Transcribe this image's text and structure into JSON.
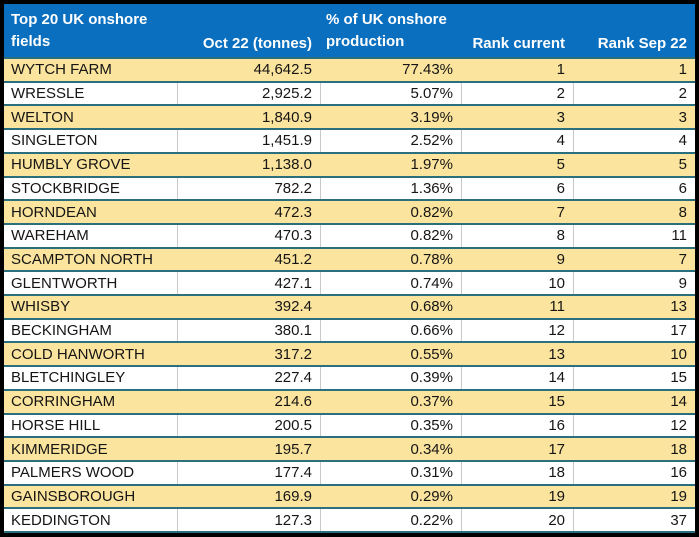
{
  "table": {
    "header": {
      "col_field": "Top 20 UK onshore fields",
      "col_tonnes": "Oct 22 (tonnes)",
      "col_pct": "% of UK onshore production",
      "col_rank_current": "Rank current",
      "col_rank_sep22": "Rank Sep 22"
    },
    "rows": [
      {
        "field": "WYTCH FARM",
        "tonnes": "44,642.5",
        "pct": "77.43%",
        "rank_current": "1",
        "rank_sep22": "1"
      },
      {
        "field": "WRESSLE",
        "tonnes": "2,925.2",
        "pct": "5.07%",
        "rank_current": "2",
        "rank_sep22": "2"
      },
      {
        "field": "WELTON",
        "tonnes": "1,840.9",
        "pct": "3.19%",
        "rank_current": "3",
        "rank_sep22": "3"
      },
      {
        "field": "SINGLETON",
        "tonnes": "1,451.9",
        "pct": "2.52%",
        "rank_current": "4",
        "rank_sep22": "4"
      },
      {
        "field": "HUMBLY GROVE",
        "tonnes": "1,138.0",
        "pct": "1.97%",
        "rank_current": "5",
        "rank_sep22": "5"
      },
      {
        "field": "STOCKBRIDGE",
        "tonnes": "782.2",
        "pct": "1.36%",
        "rank_current": "6",
        "rank_sep22": "6"
      },
      {
        "field": "HORNDEAN",
        "tonnes": "472.3",
        "pct": "0.82%",
        "rank_current": "7",
        "rank_sep22": "8"
      },
      {
        "field": "WAREHAM",
        "tonnes": "470.3",
        "pct": "0.82%",
        "rank_current": "8",
        "rank_sep22": "11"
      },
      {
        "field": "SCAMPTON NORTH",
        "tonnes": "451.2",
        "pct": "0.78%",
        "rank_current": "9",
        "rank_sep22": "7"
      },
      {
        "field": "GLENTWORTH",
        "tonnes": "427.1",
        "pct": "0.74%",
        "rank_current": "10",
        "rank_sep22": "9"
      },
      {
        "field": "WHISBY",
        "tonnes": "392.4",
        "pct": "0.68%",
        "rank_current": "11",
        "rank_sep22": "13"
      },
      {
        "field": "BECKINGHAM",
        "tonnes": "380.1",
        "pct": "0.66%",
        "rank_current": "12",
        "rank_sep22": "17"
      },
      {
        "field": "COLD HANWORTH",
        "tonnes": "317.2",
        "pct": "0.55%",
        "rank_current": "13",
        "rank_sep22": "10"
      },
      {
        "field": "BLETCHINGLEY",
        "tonnes": "227.4",
        "pct": "0.39%",
        "rank_current": "14",
        "rank_sep22": "15"
      },
      {
        "field": "CORRINGHAM",
        "tonnes": "214.6",
        "pct": "0.37%",
        "rank_current": "15",
        "rank_sep22": "14"
      },
      {
        "field": "HORSE HILL",
        "tonnes": "200.5",
        "pct": "0.35%",
        "rank_current": "16",
        "rank_sep22": "12"
      },
      {
        "field": "KIMMERIDGE",
        "tonnes": "195.7",
        "pct": "0.34%",
        "rank_current": "17",
        "rank_sep22": "18"
      },
      {
        "field": "PALMERS WOOD",
        "tonnes": "177.4",
        "pct": "0.31%",
        "rank_current": "18",
        "rank_sep22": "16"
      },
      {
        "field": "GAINSBOROUGH",
        "tonnes": "169.9",
        "pct": "0.29%",
        "rank_current": "19",
        "rank_sep22": "19"
      },
      {
        "field": "KEDDINGTON",
        "tonnes": "127.3",
        "pct": "0.22%",
        "rank_current": "20",
        "rank_sep22": "37"
      }
    ]
  },
  "colors": {
    "header_bg": "#0B6FBF",
    "header_text": "#FFFFFF",
    "row_highlight": "#FBE49D",
    "row_base": "#FFFFFF",
    "row_divider_teal": "#2B6F7F",
    "gridline_gray": "#C9C9C9",
    "frame_border": "#000000",
    "body_text": "#151515"
  },
  "chart_data": {
    "type": "table",
    "title": "Top 20 UK onshore fields — Oct 22 production",
    "columns": [
      "Top 20 UK onshore fields",
      "Oct 22 (tonnes)",
      "% of UK onshore production",
      "Rank current",
      "Rank Sep 22"
    ],
    "rows": [
      [
        "WYTCH FARM",
        44642.5,
        77.43,
        1,
        1
      ],
      [
        "WRESSLE",
        2925.2,
        5.07,
        2,
        2
      ],
      [
        "WELTON",
        1840.9,
        3.19,
        3,
        3
      ],
      [
        "SINGLETON",
        1451.9,
        2.52,
        4,
        4
      ],
      [
        "HUMBLY GROVE",
        1138.0,
        1.97,
        5,
        5
      ],
      [
        "STOCKBRIDGE",
        782.2,
        1.36,
        6,
        6
      ],
      [
        "HORNDEAN",
        472.3,
        0.82,
        7,
        8
      ],
      [
        "WAREHAM",
        470.3,
        0.82,
        8,
        11
      ],
      [
        "SCAMPTON NORTH",
        451.2,
        0.78,
        9,
        7
      ],
      [
        "GLENTWORTH",
        427.1,
        0.74,
        10,
        9
      ],
      [
        "WHISBY",
        392.4,
        0.68,
        11,
        13
      ],
      [
        "BECKINGHAM",
        380.1,
        0.66,
        12,
        17
      ],
      [
        "COLD HANWORTH",
        317.2,
        0.55,
        13,
        10
      ],
      [
        "BLETCHINGLEY",
        227.4,
        0.39,
        14,
        15
      ],
      [
        "CORRINGHAM",
        214.6,
        0.37,
        15,
        14
      ],
      [
        "HORSE HILL",
        200.5,
        0.35,
        16,
        12
      ],
      [
        "KIMMERIDGE",
        195.7,
        0.34,
        17,
        18
      ],
      [
        "PALMERS WOOD",
        177.4,
        0.31,
        18,
        16
      ],
      [
        "GAINSBOROUGH",
        169.9,
        0.29,
        19,
        19
      ],
      [
        "KEDDINGTON",
        127.3,
        0.22,
        20,
        37
      ]
    ],
    "percent_unit": "%",
    "tonnes_unit": "tonnes"
  }
}
